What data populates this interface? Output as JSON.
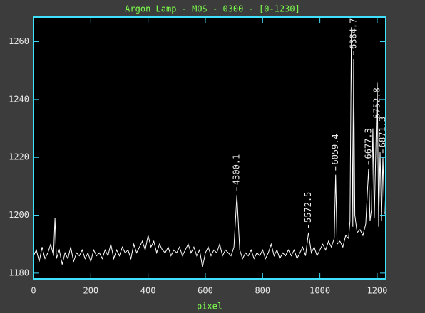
{
  "chart_data": {
    "type": "line",
    "title": "Argon Lamp - MOS - 0300 - [0-1230]",
    "x_label": "pixel",
    "x": [
      0,
      10,
      20,
      30,
      40,
      50,
      60,
      70,
      75,
      80,
      90,
      100,
      110,
      120,
      130,
      140,
      150,
      160,
      170,
      180,
      190,
      200,
      210,
      220,
      230,
      240,
      250,
      260,
      270,
      280,
      290,
      300,
      310,
      320,
      330,
      340,
      350,
      360,
      370,
      380,
      390,
      400,
      410,
      420,
      430,
      440,
      450,
      460,
      470,
      480,
      490,
      500,
      510,
      520,
      530,
      540,
      550,
      560,
      570,
      580,
      590,
      600,
      610,
      620,
      630,
      640,
      650,
      660,
      670,
      680,
      690,
      700,
      710,
      720,
      730,
      740,
      750,
      760,
      770,
      780,
      790,
      800,
      810,
      820,
      830,
      840,
      850,
      860,
      870,
      880,
      890,
      900,
      910,
      920,
      930,
      940,
      950,
      960,
      970,
      980,
      990,
      1000,
      1010,
      1020,
      1030,
      1040,
      1050,
      1055,
      1060,
      1070,
      1080,
      1090,
      1100,
      1105,
      1110,
      1115,
      1118,
      1122,
      1130,
      1140,
      1150,
      1160,
      1170,
      1175,
      1180,
      1185,
      1190,
      1195,
      1200,
      1205,
      1210,
      1215,
      1220,
      1225,
      1230
    ],
    "series": [
      {
        "color": "#ffffff",
        "values": [
          1186,
          1188,
          1184,
          1189,
          1185,
          1187,
          1190,
          1186,
          1199,
          1185,
          1188,
          1183,
          1187,
          1185,
          1189,
          1184,
          1187,
          1186,
          1188,
          1185,
          1187,
          1184,
          1188,
          1186,
          1187,
          1185,
          1188,
          1186,
          1190,
          1185,
          1188,
          1186,
          1189,
          1187,
          1188,
          1185,
          1190,
          1187,
          1189,
          1191,
          1188,
          1193,
          1189,
          1191,
          1187,
          1190,
          1188,
          1187,
          1189,
          1186,
          1188,
          1187,
          1189,
          1186,
          1188,
          1190,
          1187,
          1189,
          1186,
          1188,
          1182,
          1187,
          1189,
          1186,
          1188,
          1187,
          1190,
          1186,
          1188,
          1187,
          1186,
          1189,
          1207,
          1188,
          1185,
          1187,
          1186,
          1188,
          1185,
          1187,
          1186,
          1188,
          1185,
          1187,
          1190,
          1186,
          1188,
          1185,
          1187,
          1186,
          1188,
          1186,
          1188,
          1185,
          1187,
          1189,
          1186,
          1194,
          1187,
          1189,
          1186,
          1188,
          1190,
          1188,
          1191,
          1189,
          1192,
          1214,
          1190,
          1191,
          1189,
          1193,
          1192,
          1198,
          1265,
          1196,
          1254,
          1200,
          1194,
          1195,
          1193,
          1197,
          1216,
          1198,
          1202,
          1230,
          1199,
          1221,
          1246,
          1196,
          1222,
          1198,
          1220,
          1201,
          1200
        ]
      }
    ],
    "annotations": [
      {
        "text": "4300.1",
        "x": 710,
        "y": 1207
      },
      {
        "text": "5572.5",
        "x": 960,
        "y": 1194
      },
      {
        "text": "6059.4",
        "x": 1055,
        "y": 1214
      },
      {
        "text": "6384.7",
        "x": 1118,
        "y": 1254
      },
      {
        "text": "6677.3",
        "x": 1170,
        "y": 1216
      },
      {
        "text": "6752.8",
        "x": 1200,
        "y": 1230
      },
      {
        "text": "6871.3",
        "x": 1220,
        "y": 1220
      }
    ],
    "xlim": [
      0,
      1230
    ],
    "ylim": [
      1178,
      1268.5
    ],
    "xticks": [
      0,
      200,
      400,
      600,
      800,
      1000,
      1200
    ],
    "yticks": [
      1180,
      1200,
      1220,
      1240,
      1260
    ],
    "frame_color": "#40e0ff",
    "background": "#000000"
  }
}
